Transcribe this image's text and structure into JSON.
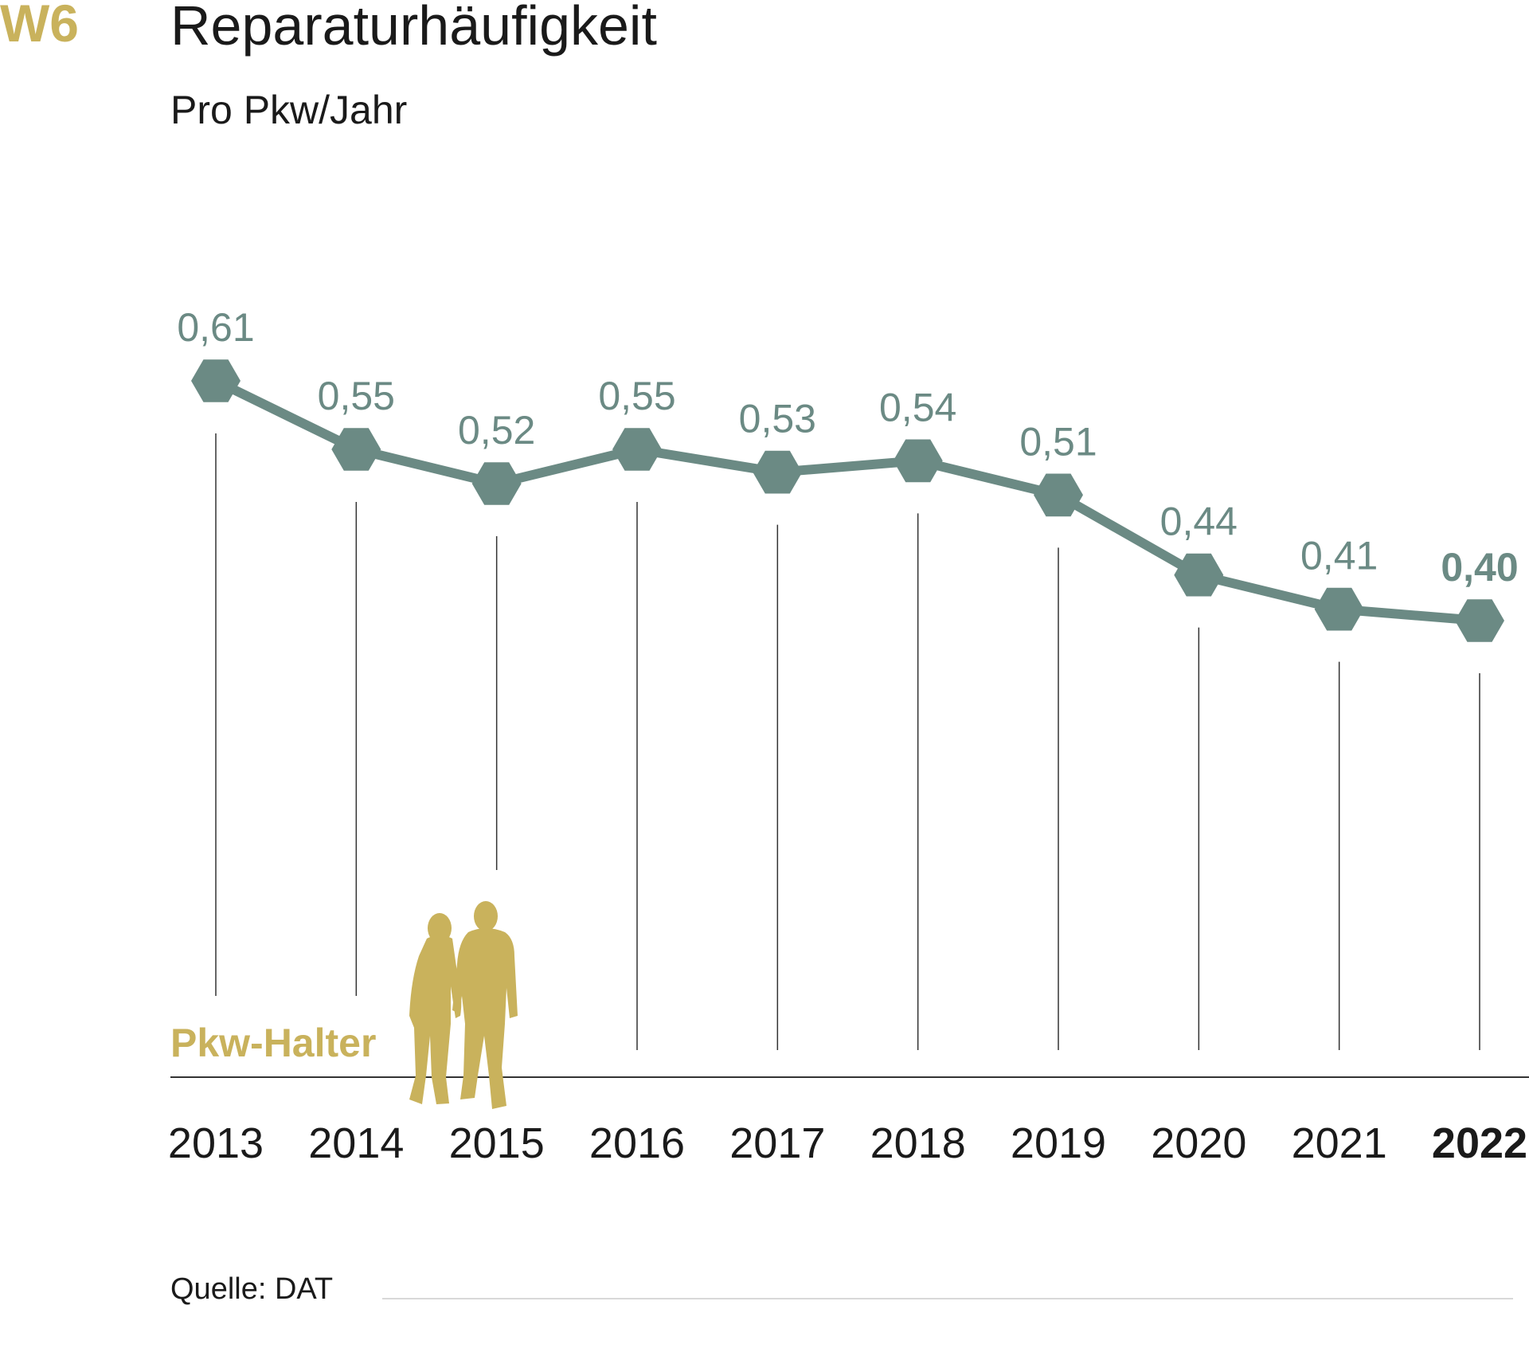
{
  "header": {
    "figure_id": "W6",
    "title": "Reparaturhäufigkeit",
    "subtitle": "Pro Pkw/Jahr"
  },
  "illustration": {
    "label": "Pkw-Halter",
    "icon": "people-silhouette-icon"
  },
  "source": "Quelle: DAT",
  "colors": {
    "accent": "#C9B25C",
    "series": "#6B8A84",
    "text": "#1A1A1A",
    "drop_line": "#333333",
    "baseline": "#333333",
    "footer_rule": "#D9D9D9"
  },
  "chart_data": {
    "type": "line",
    "title": "Reparaturhäufigkeit",
    "subtitle": "Pro Pkw/Jahr",
    "categories": [
      "2013",
      "2014",
      "2015",
      "2016",
      "2017",
      "2018",
      "2019",
      "2020",
      "2021",
      "2022"
    ],
    "values": [
      0.61,
      0.55,
      0.52,
      0.55,
      0.53,
      0.54,
      0.51,
      0.44,
      0.41,
      0.4
    ],
    "value_labels": [
      "0,61",
      "0,55",
      "0,52",
      "0,55",
      "0,53",
      "0,54",
      "0,51",
      "0,44",
      "0,41",
      "0,40"
    ],
    "highlight": "2022",
    "marker": "hexagon",
    "grid": false,
    "legend": false
  }
}
